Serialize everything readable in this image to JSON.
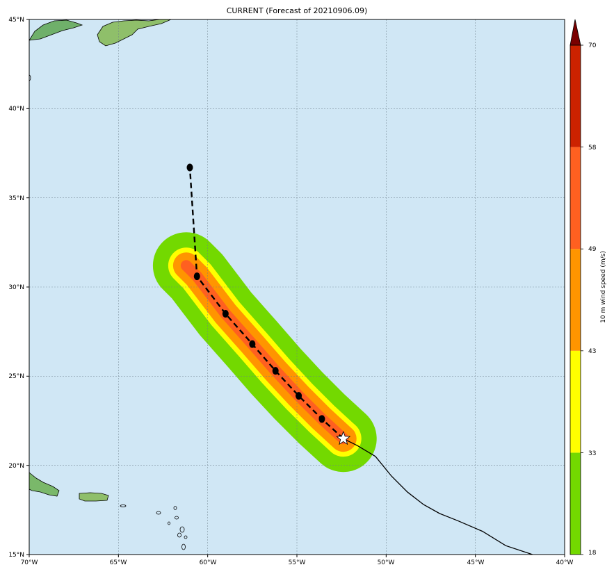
{
  "title": "CURRENT (Forecast of 20210906.09)",
  "map": {
    "lon_range": [
      -70,
      -40
    ],
    "lat_range": [
      15,
      45
    ],
    "lon_ticks": [
      "70°W",
      "65°W",
      "60°W",
      "55°W",
      "50°W",
      "45°W",
      "40°W"
    ],
    "lat_ticks": [
      "45°N",
      "40°N",
      "35°N",
      "30°N",
      "25°N",
      "20°N",
      "15°N"
    ],
    "ocean_color": "#d0e7f5",
    "gridlines": true
  },
  "track": {
    "forecast_points": [
      {
        "lon": -52.4,
        "lat": 21.5,
        "marker": "star"
      },
      {
        "lon": -53.6,
        "lat": 22.6,
        "marker": "dot"
      },
      {
        "lon": -54.9,
        "lat": 23.9,
        "marker": "dot"
      },
      {
        "lon": -56.2,
        "lat": 25.3,
        "marker": "dot"
      },
      {
        "lon": -57.5,
        "lat": 26.8,
        "marker": "dot"
      },
      {
        "lon": -59.0,
        "lat": 28.5,
        "marker": "dot"
      },
      {
        "lon": -60.6,
        "lat": 30.6,
        "marker": "dot"
      },
      {
        "lon": -61.0,
        "lat": 36.7,
        "marker": "dot"
      }
    ],
    "past_track": [
      {
        "lon": -52.4,
        "lat": 21.5
      },
      {
        "lon": -51.6,
        "lat": 21.1
      },
      {
        "lon": -50.6,
        "lat": 20.5
      },
      {
        "lon": -49.7,
        "lat": 19.4
      },
      {
        "lon": -48.8,
        "lat": 18.5
      },
      {
        "lon": -47.9,
        "lat": 17.8
      },
      {
        "lon": -47.0,
        "lat": 17.3
      },
      {
        "lon": -46.0,
        "lat": 16.9
      },
      {
        "lon": -44.6,
        "lat": 16.3
      },
      {
        "lon": -43.3,
        "lat": 15.5
      },
      {
        "lon": -41.8,
        "lat": 15.0
      }
    ]
  },
  "wind_swath": {
    "levels": [
      18,
      33,
      43,
      49,
      58,
      70
    ],
    "colors": [
      "#73d900",
      "#ffff00",
      "#ff9500",
      "#ff6020",
      "#cc2200"
    ],
    "extend_color": "#7a0000"
  },
  "colorbar": {
    "label": "10 m wind speed (m/s)",
    "tick_labels": [
      "18",
      "33",
      "43",
      "49",
      "58",
      "70"
    ]
  }
}
